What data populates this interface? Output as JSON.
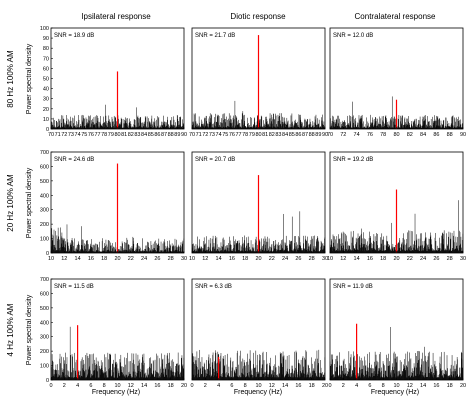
{
  "figure": {
    "column_titles": [
      "Ipsilateral response",
      "Diotic response",
      "Contralateral response"
    ],
    "row_titles": [
      "80 Hz 100% AM",
      "20 Hz 100% AM",
      "4 Hz 100% AM"
    ],
    "ylabel": "Power spectral density",
    "xlabel": "Frequency (Hz)",
    "colors": {
      "noise": "#000000",
      "signal": "#ff0000",
      "axis": "#000000"
    }
  },
  "chart_data": [
    {
      "type": "bar",
      "row": 0,
      "col": 0,
      "title": "Ipsilateral response",
      "row_label": "80 Hz 100% AM",
      "ylabel": "Power spectral density",
      "xlabel": "",
      "xlim": [
        70,
        90
      ],
      "ylim": [
        0,
        100
      ],
      "xticks": [
        70,
        71,
        72,
        73,
        74,
        75,
        76,
        77,
        78,
        79,
        80,
        81,
        82,
        83,
        84,
        85,
        86,
        87,
        88,
        89,
        90
      ],
      "yticks": [
        0,
        10,
        20,
        30,
        40,
        50,
        60,
        70,
        80,
        90,
        100
      ],
      "annotation": "SNR = 18.9 dB",
      "signal": {
        "x": 80,
        "y": 57
      },
      "noise_level": 8
    },
    {
      "type": "bar",
      "row": 0,
      "col": 1,
      "title": "Diotic response",
      "row_label": "80 Hz 100% AM",
      "ylabel": "",
      "xlabel": "",
      "xlim": [
        70,
        90
      ],
      "ylim": [
        0,
        100
      ],
      "xticks": [
        70,
        71,
        72,
        73,
        74,
        75,
        76,
        77,
        78,
        79,
        80,
        81,
        82,
        83,
        84,
        85,
        86,
        87,
        88,
        89,
        90
      ],
      "yticks": [],
      "annotation": "SNR = 21.7 dB",
      "signal": {
        "x": 80,
        "y": 93
      },
      "noise_level": 9
    },
    {
      "type": "bar",
      "row": 0,
      "col": 2,
      "title": "Contralateral response",
      "row_label": "80 Hz 100% AM",
      "ylabel": "",
      "xlabel": "",
      "xlim": [
        70,
        90
      ],
      "ylim": [
        0,
        100
      ],
      "xticks": [
        70,
        72,
        74,
        76,
        78,
        80,
        82,
        84,
        86,
        88,
        90
      ],
      "yticks": [],
      "annotation": "SNR = 12.0 dB",
      "signal": {
        "x": 80,
        "y": 29
      },
      "noise_level": 8
    },
    {
      "type": "bar",
      "row": 1,
      "col": 0,
      "title": "",
      "row_label": "20 Hz 100% AM",
      "ylabel": "Power spectral density",
      "xlabel": "",
      "xlim": [
        10,
        30
      ],
      "ylim": [
        0,
        700
      ],
      "xticks": [
        10,
        12,
        14,
        16,
        18,
        20,
        22,
        24,
        26,
        28,
        30
      ],
      "yticks": [
        0,
        100,
        200,
        300,
        400,
        500,
        600,
        700
      ],
      "annotation": "SNR = 24.6 dB",
      "signal": {
        "x": 20,
        "y": 620
      },
      "noise_level": 60
    },
    {
      "type": "bar",
      "row": 1,
      "col": 1,
      "title": "",
      "row_label": "20 Hz 100% AM",
      "ylabel": "",
      "xlabel": "",
      "xlim": [
        10,
        30
      ],
      "ylim": [
        0,
        700
      ],
      "xticks": [
        10,
        12,
        14,
        16,
        18,
        20,
        22,
        24,
        26,
        28,
        30
      ],
      "yticks": [],
      "annotation": "SNR = 20.7 dB",
      "signal": {
        "x": 20,
        "y": 540
      },
      "noise_level": 70
    },
    {
      "type": "bar",
      "row": 1,
      "col": 2,
      "title": "",
      "row_label": "20 Hz 100% AM",
      "ylabel": "",
      "xlabel": "",
      "xlim": [
        10,
        30
      ],
      "ylim": [
        0,
        700
      ],
      "xticks": [
        10,
        12,
        14,
        16,
        18,
        20,
        22,
        24,
        26,
        28,
        30
      ],
      "yticks": [],
      "annotation": "SNR = 19.2 dB",
      "signal": {
        "x": 20,
        "y": 440
      },
      "noise_level": 90
    },
    {
      "type": "bar",
      "row": 2,
      "col": 0,
      "title": "",
      "row_label": "4 Hz 100% AM",
      "ylabel": "Power spectral density",
      "xlabel": "Frequency (Hz)",
      "xlim": [
        0,
        20
      ],
      "ylim": [
        0,
        700
      ],
      "xticks": [
        0,
        2,
        4,
        6,
        8,
        10,
        12,
        14,
        16,
        18,
        20
      ],
      "yticks": [
        0,
        100,
        200,
        300,
        400,
        500,
        600,
        700
      ],
      "annotation": "SNR = 11.5 dB",
      "signal": {
        "x": 4,
        "y": 380
      },
      "noise_level": 110
    },
    {
      "type": "bar",
      "row": 2,
      "col": 1,
      "title": "",
      "row_label": "4 Hz 100% AM",
      "ylabel": "",
      "xlabel": "Frequency (Hz)",
      "xlim": [
        0,
        20
      ],
      "ylim": [
        0,
        700
      ],
      "xticks": [
        0,
        2,
        4,
        6,
        8,
        10,
        12,
        14,
        16,
        18,
        20
      ],
      "yticks": [],
      "annotation": "SNR = 6.3 dB",
      "signal": {
        "x": 4,
        "y": 160
      },
      "noise_level": 120
    },
    {
      "type": "bar",
      "row": 2,
      "col": 2,
      "title": "",
      "row_label": "4 Hz 100% AM",
      "ylabel": "",
      "xlabel": "Frequency (Hz)",
      "xlim": [
        0,
        20
      ],
      "ylim": [
        0,
        700
      ],
      "xticks": [
        0,
        2,
        4,
        6,
        8,
        10,
        12,
        14,
        16,
        18,
        20
      ],
      "yticks": [],
      "annotation": "SNR = 11.9 dB",
      "signal": {
        "x": 4,
        "y": 390
      },
      "noise_level": 115
    }
  ]
}
